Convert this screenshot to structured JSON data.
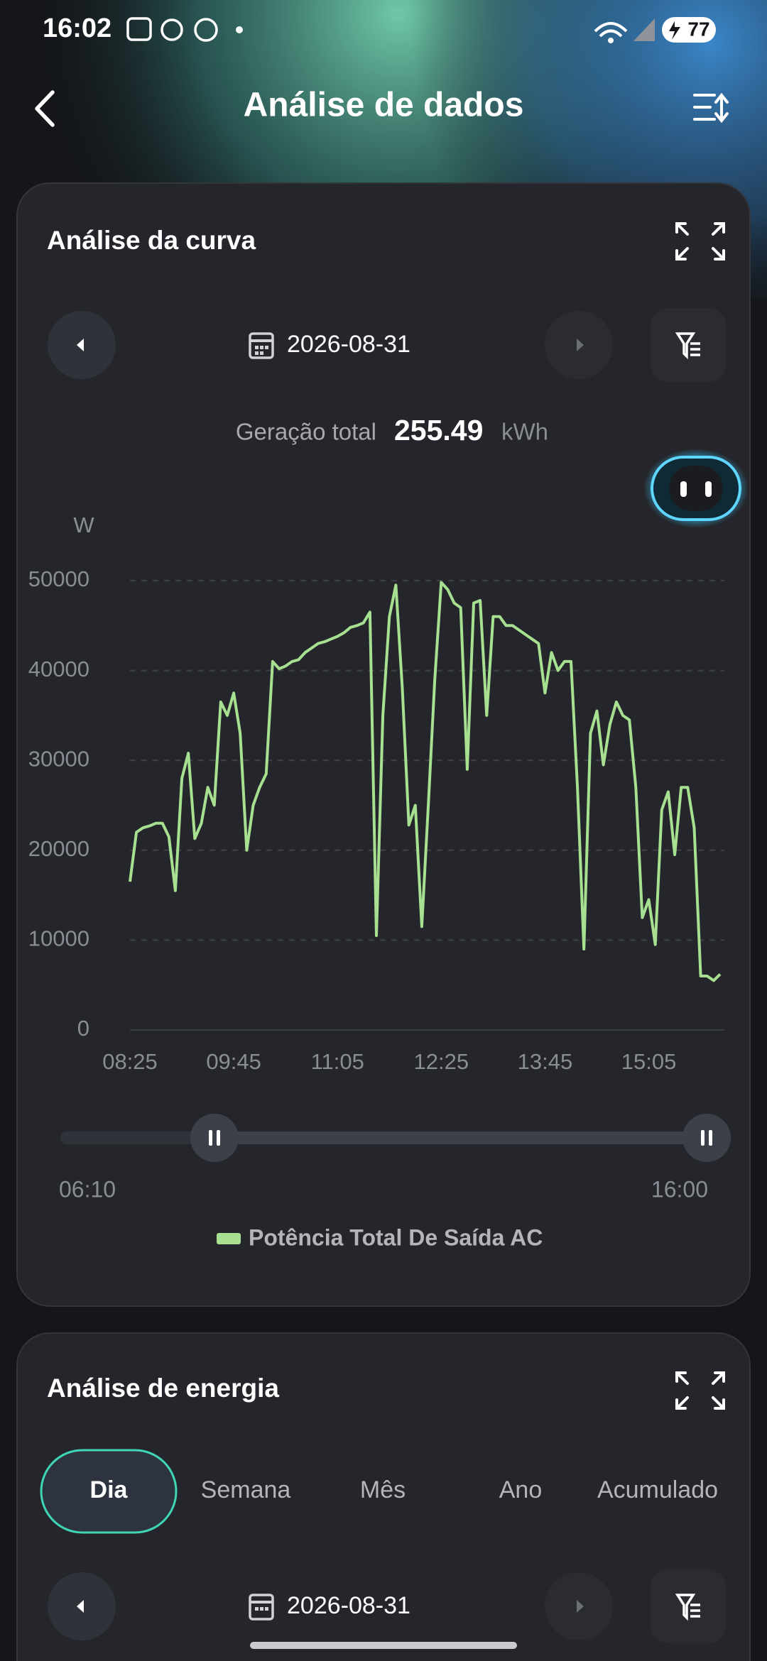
{
  "status_bar": {
    "time": "16:02",
    "battery": "77"
  },
  "header": {
    "title": "Análise de dados"
  },
  "curve_card": {
    "title": "Análise da curva",
    "date": "2026-08-31",
    "total_label": "Geração total",
    "total_value": "255.49",
    "total_unit": "kWh",
    "range_slider": {
      "start": "06:10",
      "end": "16:00"
    }
  },
  "chart_data": {
    "type": "line",
    "y_label": "W",
    "categories": [
      "08:25",
      "08:30",
      "08:35",
      "08:40",
      "08:45",
      "08:50",
      "08:55",
      "09:00",
      "09:05",
      "09:10",
      "09:15",
      "09:20",
      "09:25",
      "09:30",
      "09:35",
      "09:40",
      "09:45",
      "09:50",
      "09:55",
      "10:00",
      "10:05",
      "10:10",
      "10:15",
      "10:20",
      "10:25",
      "10:30",
      "10:35",
      "10:40",
      "10:45",
      "10:50",
      "10:55",
      "11:00",
      "11:05",
      "11:10",
      "11:15",
      "11:20",
      "11:25",
      "11:30",
      "11:35",
      "11:40",
      "11:45",
      "11:50",
      "11:55",
      "12:00",
      "12:05",
      "12:10",
      "12:15",
      "12:20",
      "12:25",
      "12:30",
      "12:35",
      "12:40",
      "12:45",
      "12:50",
      "12:55",
      "13:00",
      "13:05",
      "13:10",
      "13:15",
      "13:20",
      "13:25",
      "13:30",
      "13:35",
      "13:40",
      "13:45",
      "13:50",
      "13:55",
      "14:00",
      "14:05",
      "14:10",
      "14:15",
      "14:20",
      "14:25",
      "14:30",
      "14:35",
      "14:40",
      "14:45",
      "14:50",
      "14:55",
      "15:00",
      "15:05",
      "15:10",
      "15:15",
      "15:20",
      "15:25",
      "15:30",
      "15:35",
      "15:40",
      "15:45",
      "15:50",
      "15:55",
      "16:00"
    ],
    "xticks": [
      "08:25",
      "09:45",
      "11:05",
      "12:25",
      "13:45",
      "15:05"
    ],
    "series": [
      {
        "name": "Potência Total De Saída AC",
        "color": "#a6e090",
        "values": [
          16500,
          22000,
          22500,
          22700,
          23000,
          23000,
          21500,
          15500,
          28000,
          30800,
          21300,
          23000,
          27000,
          25000,
          36500,
          35000,
          37500,
          33000,
          20000,
          25000,
          27000,
          28500,
          41000,
          40200,
          40500,
          41000,
          41200,
          42000,
          42500,
          43000,
          43200,
          43500,
          43800,
          44200,
          44800,
          45000,
          45300,
          46500,
          10500,
          35000,
          46000,
          49500,
          38000,
          22800,
          25000,
          11500,
          25000,
          39000,
          49800,
          49000,
          47500,
          47000,
          29000,
          47500,
          47800,
          35000,
          46000,
          46000,
          45000,
          45000,
          44500,
          44000,
          43500,
          43000,
          37500,
          42000,
          40000,
          41000,
          41000,
          27000,
          9000,
          33000,
          35500,
          29500,
          34000,
          36500,
          35000,
          34500,
          27000,
          12500,
          14500,
          9500,
          24500,
          26500,
          19500,
          27000,
          27000,
          22500,
          6000,
          6000,
          5500,
          6200
        ]
      }
    ],
    "ylim": [
      0,
      50000
    ],
    "yticks": [
      0,
      10000,
      20000,
      30000,
      40000,
      50000
    ],
    "grid": true
  },
  "energy_card": {
    "title": "Análise de energia",
    "tabs": [
      "Dia",
      "Semana",
      "Mês",
      "Ano",
      "Acumulado"
    ],
    "date": "2026-08-31"
  }
}
